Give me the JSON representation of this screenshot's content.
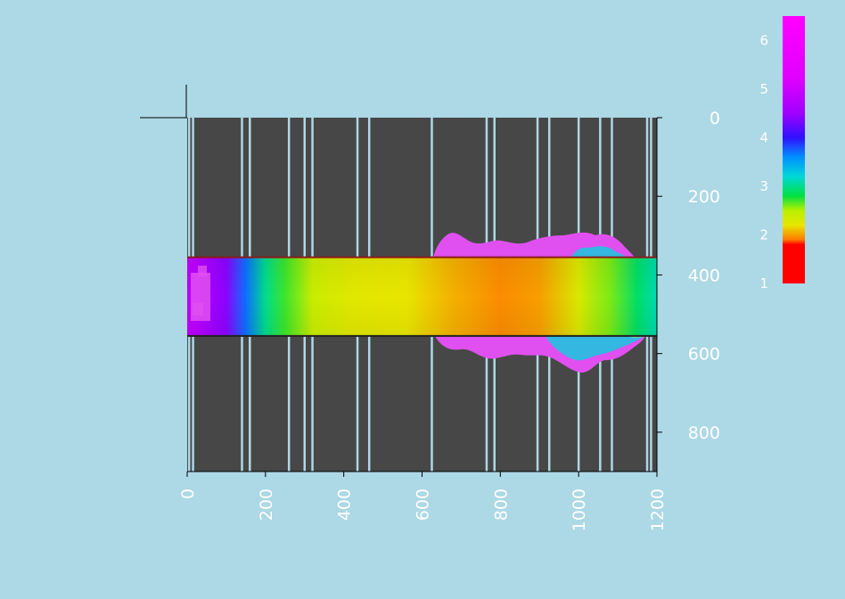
{
  "chart_data": {
    "type": "heatmap",
    "title": "",
    "xlabel": "",
    "ylabel": "",
    "xlim": [
      0,
      1200
    ],
    "ylim": [
      900,
      0
    ],
    "x_ticks": [
      "0",
      "200",
      "400",
      "600",
      "800",
      "1000",
      "1200"
    ],
    "y_ticks": [
      "0",
      "200",
      "400",
      "600",
      "800"
    ],
    "grid": false,
    "background_color": "#474747",
    "gridline_color": "#add8e6",
    "band": {
      "y_top": 355,
      "y_bottom": 555,
      "edge_color": "#8b1a1a"
    },
    "colorbar": {
      "min": 1,
      "max": 6.5,
      "ticks": [
        "1",
        "2",
        "3",
        "4",
        "5",
        "6"
      ],
      "placement": "right",
      "stops": [
        {
          "value": 1.0,
          "color": "#ff0000"
        },
        {
          "value": 1.8,
          "color": "#ff0000"
        },
        {
          "value": 1.9,
          "color": "#ff7a00"
        },
        {
          "value": 2.2,
          "color": "#e8e600"
        },
        {
          "value": 2.5,
          "color": "#b8f000"
        },
        {
          "value": 2.8,
          "color": "#00e040"
        },
        {
          "value": 3.2,
          "color": "#00d8d8"
        },
        {
          "value": 3.6,
          "color": "#0090ff"
        },
        {
          "value": 4.0,
          "color": "#3010ff"
        },
        {
          "value": 4.5,
          "color": "#a000ff"
        },
        {
          "value": 5.2,
          "color": "#e000ff"
        },
        {
          "value": 6.5,
          "color": "#ff00ff"
        }
      ]
    },
    "field_profile": [
      {
        "x": 20,
        "value": 4.8
      },
      {
        "x": 100,
        "value": 4.4
      },
      {
        "x": 150,
        "value": 3.7
      },
      {
        "x": 200,
        "value": 3.0
      },
      {
        "x": 250,
        "value": 2.7
      },
      {
        "x": 320,
        "value": 2.4
      },
      {
        "x": 420,
        "value": 2.25
      },
      {
        "x": 560,
        "value": 2.2
      },
      {
        "x": 680,
        "value": 2.05
      },
      {
        "x": 800,
        "value": 1.95
      },
      {
        "x": 900,
        "value": 2.0
      },
      {
        "x": 1000,
        "value": 2.3
      },
      {
        "x": 1080,
        "value": 2.6
      },
      {
        "x": 1150,
        "value": 2.9
      },
      {
        "x": 1200,
        "value": 3.1
      }
    ],
    "vertical_stripes_x": [
      5,
      15,
      140,
      160,
      260,
      300,
      320,
      435,
      465,
      625,
      765,
      785,
      895,
      925,
      1000,
      1055,
      1085,
      1175,
      1185
    ]
  }
}
